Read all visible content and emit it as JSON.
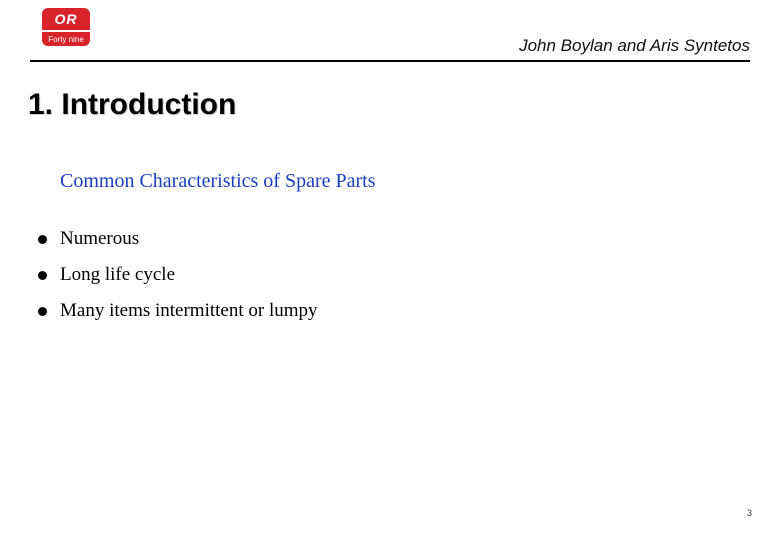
{
  "logo": {
    "top_text": "OR",
    "bottom_text": "Forty nine",
    "bg_color": "#d8232a",
    "text_color": "#ffffff"
  },
  "header": {
    "authors": "John Boylan and Aris Syntetos",
    "rule_color": "#000000"
  },
  "title": "1. Introduction",
  "subtitle": "Common Characteristics of Spare Parts",
  "bullets": [
    "Numerous",
    "Long life cycle",
    "Many items intermittent or lumpy"
  ],
  "page_number": "3",
  "colors": {
    "background": "#ffffff",
    "title_color": "#000000",
    "subtitle_color": "#1a3fbf",
    "body_color": "#000000",
    "bullet_color": "#000000",
    "title_shadow": "#cccccc"
  },
  "typography": {
    "title_fontsize": 30,
    "subtitle_fontsize": 20,
    "body_fontsize": 19,
    "author_fontsize": 17,
    "title_font": "Arial, sans-serif",
    "body_font": "Georgia, serif"
  }
}
